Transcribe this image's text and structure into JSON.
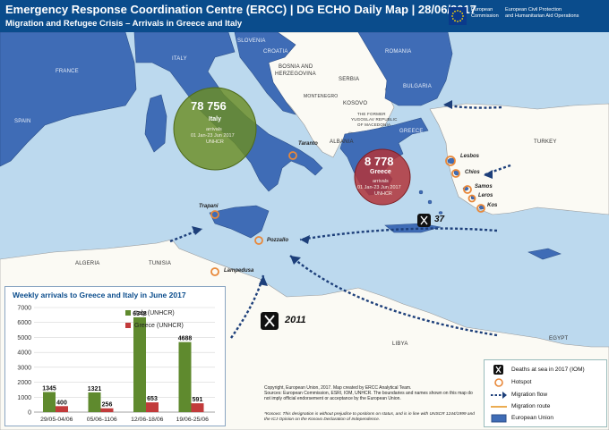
{
  "header": {
    "title": "Emergency Response Coordination Centre (ERCC) | DG ECHO Daily Map | 28/06/2017",
    "subtitle": "Migration and Refugee Crisis  – Arrivals in Greece and Italy"
  },
  "eu_logo": {
    "line1": "European",
    "line2": "Commission",
    "line3": "European Civil Protection",
    "line4": "and Humanitarian Aid Operations"
  },
  "map": {
    "countries": [
      "FRANCE",
      "SPAIN",
      "ITALY",
      "SLOVENIA",
      "CROATIA",
      "ROMANIA",
      "BOSNIA AND",
      "HERZEGOVINA",
      "SERBIA",
      "MONTENEGRO",
      "KOSOVO",
      "BULGARIA",
      "ALBANIA",
      "THE FORMER",
      "YUGOSLAV REPUBLIC",
      "OF MACEDONIA",
      "GREECE",
      "TURKEY",
      "TUNISIA",
      "ALGERIA",
      "LIBYA",
      "EGYPT"
    ],
    "cities": [
      "Taranto",
      "Trapani",
      "Pozzallo",
      "Lampedusa",
      "Lesbos",
      "Chios",
      "Samos",
      "Leros",
      "Kos"
    ],
    "italy_bubble": {
      "value": "78 756",
      "name": "Italy",
      "label": "arrivals",
      "period": "01 Jan-23 Jun 2017",
      "source": "UNHCR"
    },
    "greece_bubble": {
      "value": "8 778",
      "name": "Greece",
      "label": "arrivals",
      "period": "01 Jan-23 Jun 2017",
      "source": "UNHCR"
    },
    "deaths_greece": "37",
    "deaths_italy": "2011"
  },
  "colors": {
    "header_bg": "#0a4c8c",
    "sea": "#bcd9ee",
    "land": "#fbfaf4",
    "eu": "#3f6cb6",
    "italy_bubble": "#6b8e23",
    "greece_bubble": "#b1343a",
    "italy_series": "#5f8a2e",
    "greece_series": "#c23b3b",
    "migration_route": "#e8a13a",
    "hotspot": "#e8883a"
  },
  "chart_data": {
    "type": "bar",
    "title": "Weekly arrivals to Greece and Italy in June 2017",
    "categories": [
      "29/05-04/06",
      "05/06-1106",
      "12/06-18/06",
      "19/06-25/06"
    ],
    "series": [
      {
        "name": "Italy (UNHCR)",
        "values": [
          1345,
          1321,
          6348,
          4688
        ]
      },
      {
        "name": "Greece (UNHCR)",
        "values": [
          400,
          256,
          653,
          591
        ]
      }
    ],
    "ylim": [
      0,
      7000
    ],
    "yticks": [
      "0",
      "1000",
      "2000",
      "3000",
      "4000",
      "5000",
      "6000",
      "7000"
    ],
    "grid": true,
    "legend": "top-right"
  },
  "legend": {
    "deaths": "Deaths at sea in 2017 (IOM)",
    "hotspot": "Hotspot",
    "flow": "Migration flow",
    "route": "Migration route",
    "eu": "European Union"
  },
  "footer": {
    "copyright": "Copyright, European Union, 2017. Map created by ERCC Analytical Team.",
    "sources": "Sources: European Commission, ESRI, IOM, UNHCR. The boundaries and names shown on this map do not imply official endorsement or acceptance by the European Union.",
    "kosovo": "*Kosovo: This designation is without prejudice to positions on status, and is in line with UNSCR 1244/1999 and the ICJ Opinion on the Kosovo Declaration of Independence."
  }
}
